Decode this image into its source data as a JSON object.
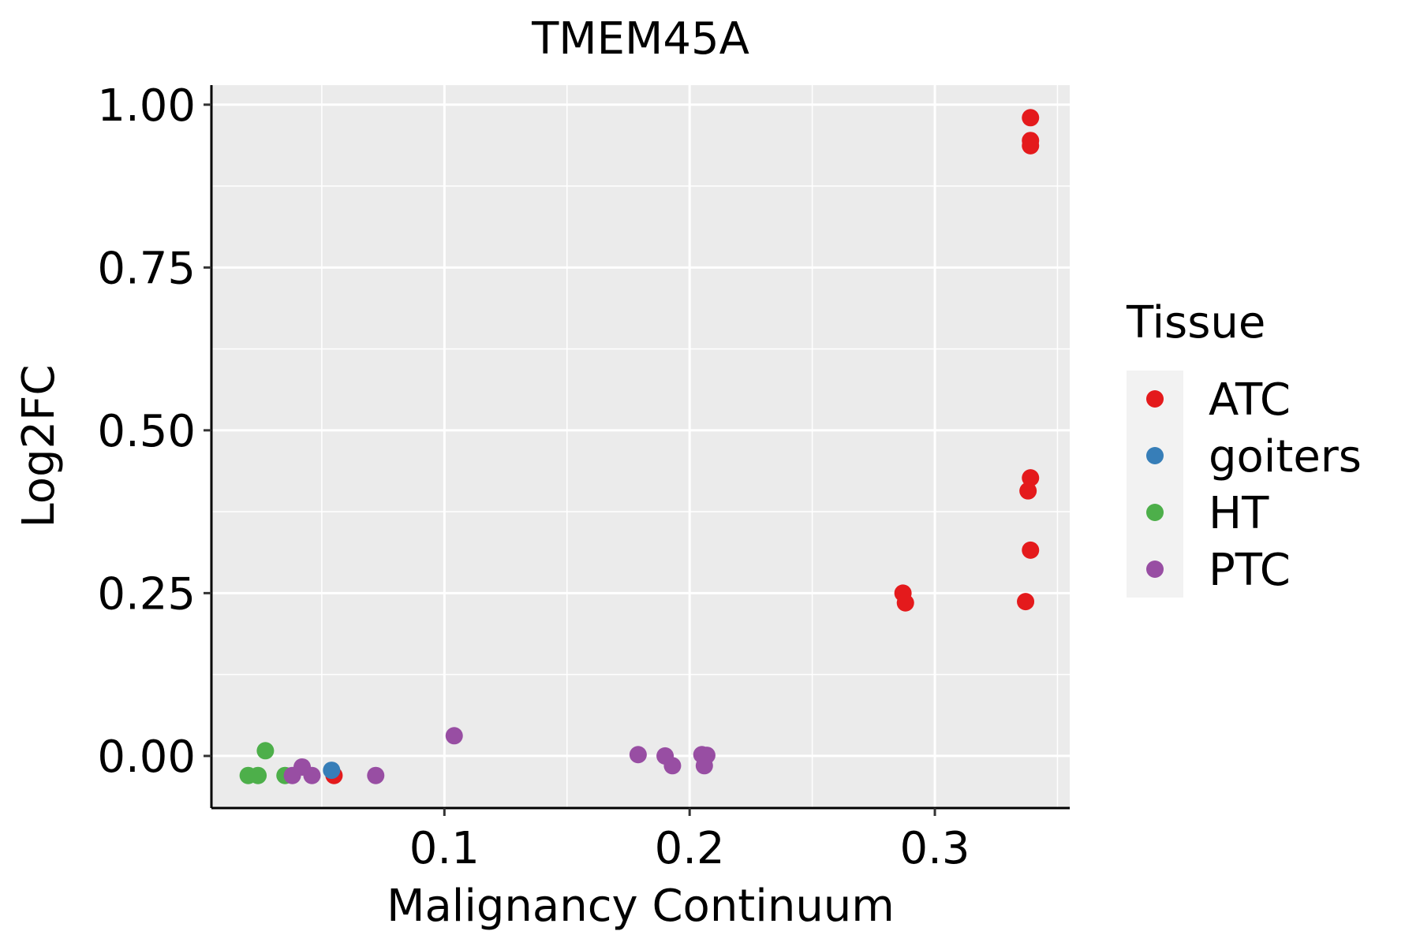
{
  "chart_data": {
    "type": "scatter",
    "title": "TMEM45A",
    "xlabel": "Malignancy Continuum",
    "ylabel": "Log2FC",
    "xlim": [
      0.005,
      0.355
    ],
    "ylim": [
      -0.08,
      1.03
    ],
    "x_ticks": [
      0.1,
      0.2,
      0.3
    ],
    "x_tick_labels": [
      "0.1",
      "0.2",
      "0.3"
    ],
    "y_ticks": [
      0.0,
      0.25,
      0.5,
      0.75,
      1.0
    ],
    "y_tick_labels": [
      "0.00",
      "0.25",
      "0.50",
      "0.75",
      "1.00"
    ],
    "x_minor": [
      0.05,
      0.15,
      0.25,
      0.35
    ],
    "y_minor": [
      0.125,
      0.375,
      0.625,
      0.875
    ],
    "grid": true,
    "background": "#ebebeb",
    "legend": {
      "title": "Tissue",
      "position": "right"
    },
    "series": [
      {
        "name": "ATC",
        "color": "#e41a1c",
        "x": [
          0.339,
          0.339,
          0.339,
          0.339,
          0.338,
          0.339,
          0.337,
          0.287,
          0.288,
          0.055
        ],
        "y": [
          0.98,
          0.945,
          0.937,
          0.427,
          0.407,
          0.316,
          0.237,
          0.25,
          0.235,
          -0.03
        ]
      },
      {
        "name": "goiters",
        "color": "#377eb8",
        "x": [
          0.054
        ],
        "y": [
          -0.022
        ]
      },
      {
        "name": "HT",
        "color": "#4daf4a",
        "x": [
          0.027,
          0.02,
          0.024,
          0.035
        ],
        "y": [
          0.008,
          -0.03,
          -0.03,
          -0.03
        ]
      },
      {
        "name": "PTC",
        "color": "#984ea3",
        "x": [
          0.038,
          0.042,
          0.046,
          0.072,
          0.104,
          0.179,
          0.19,
          0.193,
          0.205,
          0.207,
          0.206
        ],
        "y": [
          -0.03,
          -0.017,
          -0.03,
          -0.03,
          0.031,
          0.002,
          0.0,
          -0.015,
          0.002,
          0.001,
          -0.015
        ]
      }
    ]
  }
}
